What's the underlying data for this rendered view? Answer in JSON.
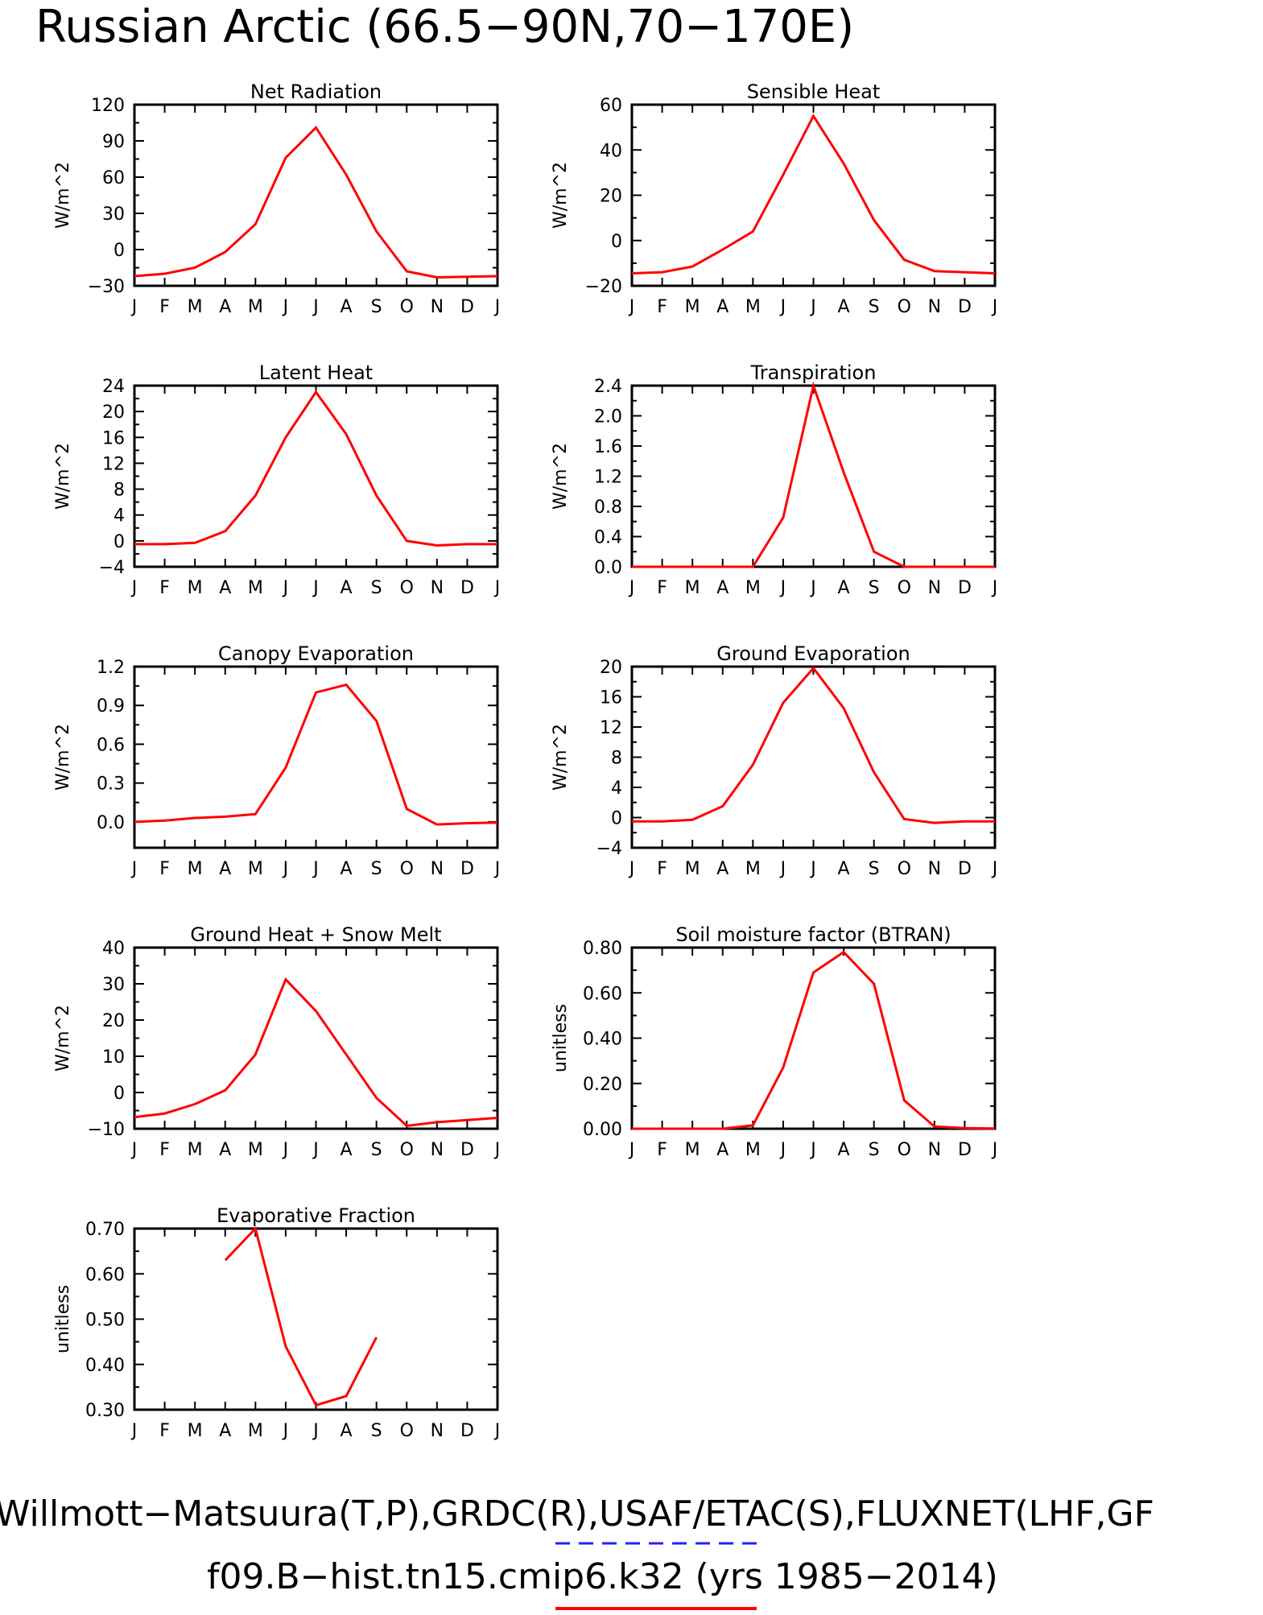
{
  "title": "Russian Arctic (66.5−90N,70−170E)",
  "legend": {
    "obs_label": "Willmott−Matsuura(T,P),GRDC(R),USAF/ETAC(S),FLUXNET(LHF,GF",
    "model_label": "f09.B−hist.tn15.cmip6.k32 (yrs 1985−2014)",
    "obs_color": "#2222ff",
    "model_color": "#ff0000"
  },
  "chart_data": [
    {
      "type": "line",
      "title": "Net Radiation",
      "ylabel": "W/m^2",
      "x": [
        "J",
        "F",
        "M",
        "A",
        "M",
        "J",
        "J",
        "A",
        "S",
        "O",
        "N",
        "D",
        "J"
      ],
      "ylim": [
        -30,
        120
      ],
      "yticks": [
        "−30",
        "0",
        "30",
        "60",
        "90",
        "120"
      ],
      "series": [
        {
          "color": "#ff0000",
          "values": [
            -22,
            -20,
            -15,
            -2,
            21,
            76,
            101,
            62,
            15,
            -18,
            -23,
            -22.5,
            -22
          ]
        }
      ]
    },
    {
      "type": "line",
      "title": "Sensible Heat",
      "ylabel": "W/m^2",
      "x": [
        "J",
        "F",
        "M",
        "A",
        "M",
        "J",
        "J",
        "A",
        "S",
        "O",
        "N",
        "D",
        "J"
      ],
      "ylim": [
        -20,
        60
      ],
      "yticks": [
        "−20",
        "0",
        "20",
        "40",
        "60"
      ],
      "series": [
        {
          "color": "#ff0000",
          "values": [
            -14.5,
            -14,
            -11.5,
            -4,
            4,
            29,
            55,
            34,
            9,
            -8.5,
            -13.5,
            -14,
            -14.5
          ]
        }
      ]
    },
    {
      "type": "line",
      "title": "Latent Heat",
      "ylabel": "W/m^2",
      "x": [
        "J",
        "F",
        "M",
        "A",
        "M",
        "J",
        "J",
        "A",
        "S",
        "O",
        "N",
        "D",
        "J"
      ],
      "ylim": [
        -4,
        24
      ],
      "yticks": [
        "−4",
        "0",
        "4",
        "8",
        "12",
        "16",
        "20",
        "24"
      ],
      "series": [
        {
          "color": "#ff0000",
          "values": [
            -0.5,
            -0.5,
            -0.3,
            1.5,
            7,
            16,
            23,
            16.5,
            7,
            0,
            -0.7,
            -0.5,
            -0.5
          ]
        }
      ]
    },
    {
      "type": "line",
      "title": "Transpiration",
      "ylabel": "W/m^2",
      "x": [
        "J",
        "F",
        "M",
        "A",
        "M",
        "J",
        "J",
        "A",
        "S",
        "O",
        "N",
        "D",
        "J"
      ],
      "ylim": [
        0,
        2.4
      ],
      "yticks": [
        "0.0",
        "0.4",
        "0.8",
        "1.2",
        "1.6",
        "2.0",
        "2.4"
      ],
      "series": [
        {
          "color": "#ff0000",
          "values": [
            0,
            0,
            0,
            0,
            0,
            0.65,
            2.4,
            1.25,
            0.2,
            0,
            0,
            0,
            0
          ]
        }
      ]
    },
    {
      "type": "line",
      "title": "Canopy Evaporation",
      "ylabel": "W/m^2",
      "x": [
        "J",
        "F",
        "M",
        "A",
        "M",
        "J",
        "J",
        "A",
        "S",
        "O",
        "N",
        "D",
        "J"
      ],
      "ylim": [
        -0.2,
        1.2
      ],
      "yticks": [
        "0.0",
        "0.3",
        "0.6",
        "0.9",
        "1.2"
      ],
      "series": [
        {
          "color": "#ff0000",
          "values": [
            0,
            0.01,
            0.03,
            0.04,
            0.06,
            0.42,
            1.0,
            1.06,
            0.78,
            0.1,
            -0.02,
            -0.01,
            -0.005
          ]
        }
      ]
    },
    {
      "type": "line",
      "title": "Ground Evaporation",
      "ylabel": "W/m^2",
      "x": [
        "J",
        "F",
        "M",
        "A",
        "M",
        "J",
        "J",
        "A",
        "S",
        "O",
        "N",
        "D",
        "J"
      ],
      "ylim": [
        -4,
        20
      ],
      "yticks": [
        "−4",
        "0",
        "4",
        "8",
        "12",
        "16",
        "20"
      ],
      "series": [
        {
          "color": "#ff0000",
          "values": [
            -0.5,
            -0.5,
            -0.3,
            1.5,
            7,
            15.2,
            19.8,
            14.5,
            6,
            -0.2,
            -0.7,
            -0.5,
            -0.5
          ]
        }
      ]
    },
    {
      "type": "line",
      "title": "Ground Heat + Snow Melt",
      "ylabel": "W/m^2",
      "x": [
        "J",
        "F",
        "M",
        "A",
        "M",
        "J",
        "J",
        "A",
        "S",
        "O",
        "N",
        "D",
        "J"
      ],
      "ylim": [
        -10,
        40
      ],
      "yticks": [
        "−10",
        "0",
        "10",
        "20",
        "30",
        "40"
      ],
      "series": [
        {
          "color": "#ff0000",
          "values": [
            -6.8,
            -5.8,
            -3.2,
            0.6,
            10.5,
            31.2,
            22.5,
            10.5,
            -1.5,
            -9.2,
            -8.2,
            -7.6,
            -7
          ]
        }
      ]
    },
    {
      "type": "line",
      "title": "Soil moisture factor (BTRAN)",
      "ylabel": "unitless",
      "x": [
        "J",
        "F",
        "M",
        "A",
        "M",
        "J",
        "J",
        "A",
        "S",
        "O",
        "N",
        "D",
        "J"
      ],
      "ylim": [
        0,
        0.8
      ],
      "yticks": [
        "0.00",
        "0.20",
        "0.40",
        "0.60",
        "0.80"
      ],
      "series": [
        {
          "color": "#ff0000",
          "values": [
            0,
            0,
            0,
            0,
            0.015,
            0.27,
            0.69,
            0.78,
            0.64,
            0.125,
            0.01,
            0.003,
            0.001
          ]
        }
      ]
    },
    {
      "type": "line",
      "title": "Evaporative Fraction",
      "ylabel": "unitless",
      "x": [
        "J",
        "F",
        "M",
        "A",
        "M",
        "J",
        "J",
        "A",
        "S",
        "O",
        "N",
        "D",
        "J"
      ],
      "ylim": [
        0.3,
        0.7
      ],
      "yticks": [
        "0.30",
        "0.40",
        "0.50",
        "0.60",
        "0.70"
      ],
      "series": [
        {
          "color": "#ff0000",
          "values": [
            null,
            null,
            null,
            0.63,
            0.7,
            0.44,
            0.31,
            0.33,
            0.46,
            null,
            null,
            null,
            null
          ]
        }
      ]
    }
  ]
}
